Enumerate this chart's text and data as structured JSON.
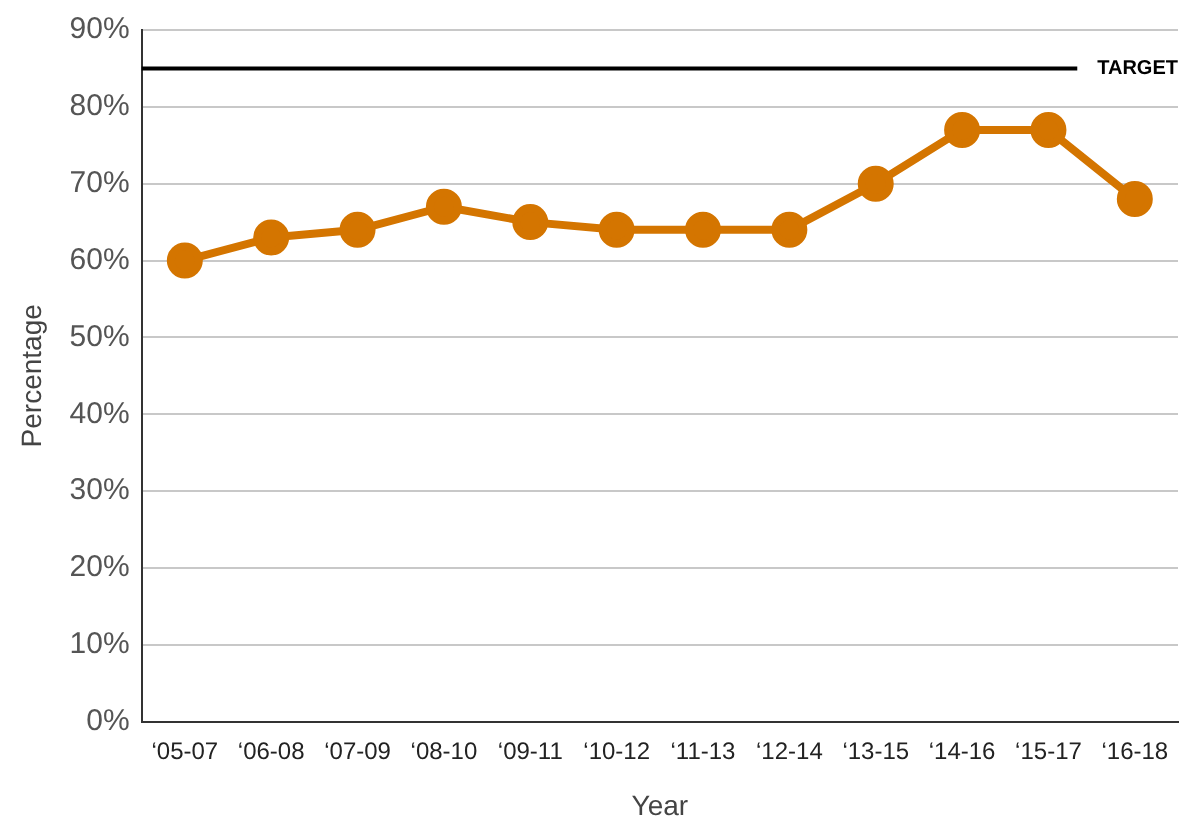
{
  "chart_data": {
    "type": "line",
    "xlabel": "Year",
    "ylabel": "Percentage",
    "categories": [
      "‘05-07",
      "‘06-08",
      "‘07-09",
      "‘08-10",
      "‘09-11",
      "‘10-12",
      "‘11-13",
      "‘12-14",
      "‘13-15",
      "‘14-16",
      "‘15-17",
      "‘16-18"
    ],
    "series": [
      {
        "color": "#d47500",
        "values": [
          60,
          63,
          64,
          67,
          65,
          64,
          64,
          64,
          70,
          77,
          77,
          68
        ]
      }
    ],
    "ylim": [
      0,
      90
    ],
    "yticks": [
      {
        "value": 0,
        "label": "0%"
      },
      {
        "value": 10,
        "label": "10%"
      },
      {
        "value": 20,
        "label": "20%"
      },
      {
        "value": 30,
        "label": "30%"
      },
      {
        "value": 40,
        "label": "40%"
      },
      {
        "value": 50,
        "label": "50%"
      },
      {
        "value": 60,
        "label": "60%"
      },
      {
        "value": 70,
        "label": "70%"
      },
      {
        "value": 80,
        "label": "80%"
      },
      {
        "value": 90,
        "label": "90%"
      }
    ],
    "ref_lines": [
      {
        "axis": "y",
        "value": 85,
        "label": "TARGET",
        "color": "#000000"
      }
    ],
    "grid": "y",
    "legend": false,
    "marker": "circle",
    "line_style": "solid"
  }
}
